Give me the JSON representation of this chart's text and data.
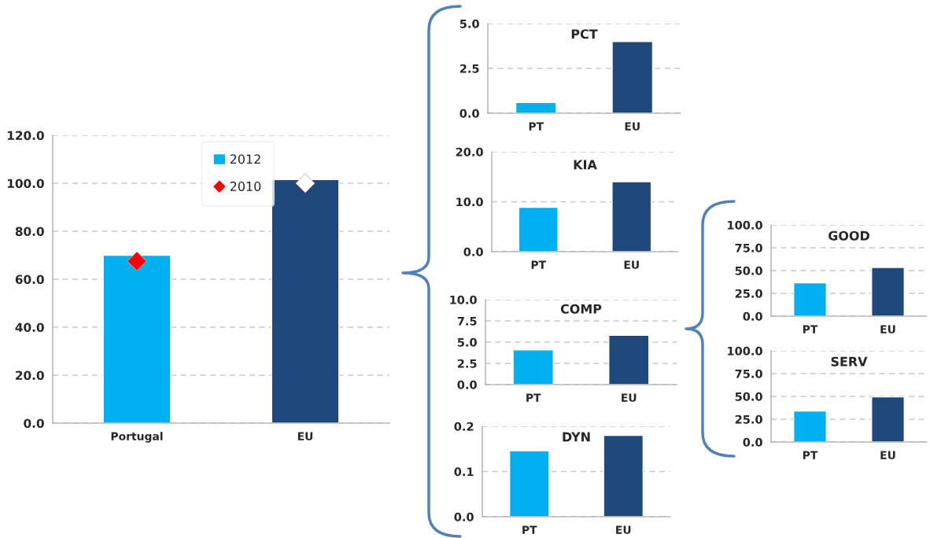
{
  "chart_data": [
    {
      "type": "bar",
      "categories": [
        "Portugal",
        "EU"
      ],
      "series": [
        {
          "name": "2012",
          "type": "bar",
          "color": "#00b0f0",
          "colors": [
            "#00b0f0",
            "#1f497d"
          ],
          "values": [
            70,
            101.5
          ]
        },
        {
          "name": "2010",
          "type": "scatter",
          "color": "#ff0000",
          "colors": [
            "#ff0000",
            "#ffffff"
          ],
          "values": [
            67.5,
            100
          ]
        }
      ],
      "marker": "diamond",
      "ylim": [
        0,
        120
      ],
      "yticks": [
        {
          "value": 0,
          "label": "0.0"
        },
        {
          "value": 20,
          "label": "20.0"
        },
        {
          "value": 40,
          "label": "40.0"
        },
        {
          "value": 60,
          "label": "60.0"
        },
        {
          "value": 80,
          "label": "80.0"
        },
        {
          "value": 100,
          "label": "100.0"
        },
        {
          "value": 120,
          "label": "120.0"
        }
      ],
      "grid": "y",
      "legend": "top"
    },
    {
      "type": "bar",
      "title": "PCT",
      "categories": [
        "PT",
        "EU"
      ],
      "values": [
        0.6,
        4.0
      ],
      "colors": [
        "#00b0f0",
        "#1f497d"
      ],
      "ylim": [
        0,
        5
      ],
      "yticks": [
        {
          "value": 0,
          "label": "0.0"
        },
        {
          "value": 2.5,
          "label": "2.5"
        },
        {
          "value": 5,
          "label": "5.0"
        }
      ],
      "grid": "y"
    },
    {
      "type": "bar",
      "title": "KIA",
      "categories": [
        "PT",
        "EU"
      ],
      "values": [
        8.9,
        14.0
      ],
      "colors": [
        "#00b0f0",
        "#1f497d"
      ],
      "ylim": [
        0,
        20
      ],
      "yticks": [
        {
          "value": 0,
          "label": "0.0"
        },
        {
          "value": 10,
          "label": "10.0"
        },
        {
          "value": 20,
          "label": "20.0"
        }
      ],
      "grid": "y"
    },
    {
      "type": "bar",
      "title": "COMP",
      "categories": [
        "PT",
        "EU"
      ],
      "values": [
        4.1,
        5.8
      ],
      "colors": [
        "#00b0f0",
        "#1f497d"
      ],
      "ylim": [
        0,
        10
      ],
      "yticks": [
        {
          "value": 0,
          "label": "0.0"
        },
        {
          "value": 2.5,
          "label": "2.5"
        },
        {
          "value": 5,
          "label": "5.0"
        },
        {
          "value": 7.5,
          "label": "7.5"
        },
        {
          "value": 10,
          "label": "10.0"
        }
      ],
      "grid": "y"
    },
    {
      "type": "bar",
      "title": "DYN",
      "categories": [
        "PT",
        "EU"
      ],
      "values": [
        0.146,
        0.18
      ],
      "colors": [
        "#00b0f0",
        "#1f497d"
      ],
      "ylim": [
        0,
        0.2
      ],
      "yticks": [
        {
          "value": 0,
          "label": "0.0"
        },
        0.1,
        0.2
      ],
      "grid": "y"
    },
    {
      "type": "bar",
      "title": "GOOD",
      "categories": [
        "PT",
        "EU"
      ],
      "values": [
        36.5,
        53.5
      ],
      "colors": [
        "#00b0f0",
        "#1f497d"
      ],
      "ylim": [
        0,
        100
      ],
      "yticks": [
        {
          "value": 0,
          "label": "0.0"
        },
        {
          "value": 25,
          "label": "25.0"
        },
        {
          "value": 50,
          "label": "50.0"
        },
        {
          "value": 75,
          "label": "75.0"
        },
        {
          "value": 100,
          "label": "100.0"
        }
      ],
      "grid": "y"
    },
    {
      "type": "bar",
      "title": "SERV",
      "categories": [
        "PT",
        "EU"
      ],
      "values": [
        34,
        49.5
      ],
      "colors": [
        "#00b0f0",
        "#1f497d"
      ],
      "ylim": [
        0,
        100
      ],
      "yticks": [
        {
          "value": 0,
          "label": "0.0"
        },
        {
          "value": 25,
          "label": "25.0"
        },
        {
          "value": 50,
          "label": "50.0"
        },
        {
          "value": 75,
          "label": "75.0"
        },
        {
          "value": 100,
          "label": "100.0"
        }
      ],
      "grid": "y"
    }
  ]
}
